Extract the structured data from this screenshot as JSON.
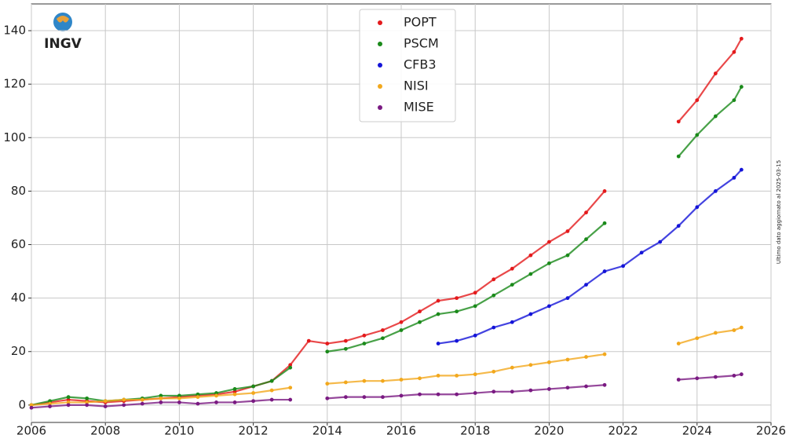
{
  "chart_data": {
    "type": "scatter",
    "logo_text": "INGV",
    "annotation": "Ultimo dato aggiornato al 2025-03-15",
    "x": [
      2006,
      2006.5,
      2007,
      2007.5,
      2008,
      2008.5,
      2009,
      2009.5,
      2010,
      2010.5,
      2011,
      2011.5,
      2012,
      2012.5,
      2013,
      2013.5,
      2014,
      2014.5,
      2015,
      2015.5,
      2016,
      2016.5,
      2017,
      2017.5,
      2018,
      2018.5,
      2019,
      2019.5,
      2020,
      2020.5,
      2021,
      2021.5,
      2022,
      2022.5,
      2023,
      2023.5,
      2024,
      2024.5,
      2025,
      2025.2
    ],
    "series": [
      {
        "name": "POPT",
        "color": "#e41a1c",
        "values": [
          0,
          1,
          2,
          1.5,
          1,
          1.5,
          2,
          2.5,
          3,
          3.5,
          4,
          5,
          7,
          9,
          15,
          24,
          23,
          24,
          26,
          28,
          31,
          35,
          39,
          40,
          42,
          47,
          51,
          56,
          61,
          65,
          72,
          80,
          null,
          null,
          null,
          106,
          114,
          124,
          132,
          137
        ]
      },
      {
        "name": "PSCM",
        "color": "#1a8a1a",
        "values": [
          0,
          1.5,
          3,
          2.5,
          1.5,
          2,
          2.5,
          3.5,
          3.5,
          4,
          4.5,
          6,
          7,
          9,
          14,
          null,
          20,
          21,
          23,
          25,
          28,
          31,
          34,
          35,
          37,
          41,
          45,
          49,
          53,
          56,
          62,
          68,
          null,
          null,
          null,
          93,
          101,
          108,
          114,
          119
        ]
      },
      {
        "name": "CFB3",
        "color": "#1414d8",
        "values": [
          null,
          null,
          null,
          null,
          null,
          null,
          null,
          null,
          null,
          null,
          null,
          null,
          null,
          null,
          null,
          null,
          null,
          null,
          null,
          null,
          null,
          null,
          23,
          24,
          26,
          29,
          31,
          34,
          37,
          40,
          45,
          50,
          52,
          57,
          61,
          67,
          74,
          80,
          85,
          88
        ]
      },
      {
        "name": "NISI",
        "color": "#f2a81d",
        "values": [
          0,
          0.5,
          1,
          1,
          1.5,
          2,
          2,
          2.5,
          2.5,
          3,
          3.5,
          4,
          4.5,
          5.5,
          6.5,
          null,
          8,
          8.5,
          9,
          9,
          9.5,
          10,
          11,
          11,
          11.5,
          12.5,
          14,
          15,
          16,
          17,
          18,
          19,
          null,
          null,
          null,
          23,
          25,
          27,
          28,
          29
        ]
      },
      {
        "name": "MISE",
        "color": "#7a1a82",
        "values": [
          -1,
          -0.5,
          0,
          0,
          -0.5,
          0,
          0.5,
          1,
          1,
          0.5,
          1,
          1,
          1.5,
          2,
          2,
          null,
          2.5,
          3,
          3,
          3,
          3.5,
          4,
          4,
          4,
          4.5,
          5,
          5,
          5.5,
          6,
          6.5,
          7,
          7.5,
          null,
          null,
          null,
          9.5,
          10,
          10.5,
          11,
          11.5
        ]
      }
    ],
    "xlim": [
      2006,
      2026
    ],
    "xticks": [
      2006,
      2008,
      2010,
      2012,
      2014,
      2016,
      2018,
      2020,
      2022,
      2024,
      2026
    ],
    "ylim": [
      -6.5,
      150
    ],
    "yticks": [
      0,
      20,
      40,
      60,
      80,
      100,
      120,
      140
    ],
    "grid": true
  }
}
